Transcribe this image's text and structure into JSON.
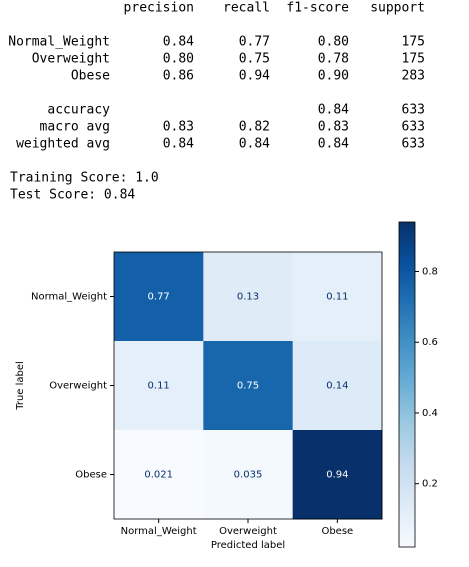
{
  "report": {
    "columns": [
      "precision",
      "recall",
      "f1-score",
      "support"
    ],
    "rows": [
      [
        "Normal_Weight",
        "0.84",
        "0.77",
        "0.80",
        "175"
      ],
      [
        "Overweight",
        "0.80",
        "0.75",
        "0.78",
        "175"
      ],
      [
        "Obese",
        "0.86",
        "0.94",
        "0.90",
        "283"
      ]
    ],
    "summary": [
      [
        "accuracy",
        null,
        null,
        "0.84",
        "633"
      ],
      [
        "macro avg",
        "0.83",
        "0.82",
        "0.83",
        "633"
      ],
      [
        "weighted avg",
        "0.84",
        "0.84",
        "0.84",
        "633"
      ]
    ]
  },
  "scores": [
    "Training Score: 1.0",
    "Test Score: 0.84"
  ],
  "chart_data": {
    "type": "heatmap",
    "xlabel": "Predicted label",
    "ylabel": "True label",
    "x_categories": [
      "Normal_Weight",
      "Overweight",
      "Obese"
    ],
    "y_categories": [
      "Normal_Weight",
      "Overweight",
      "Obese"
    ],
    "values": [
      [
        0.77,
        0.13,
        0.11
      ],
      [
        0.11,
        0.75,
        0.14
      ],
      [
        0.021,
        0.035,
        0.94
      ]
    ],
    "colormap": "Blues",
    "clim": [
      0.021,
      0.94
    ],
    "cticks": [
      0.2,
      0.4,
      0.6,
      0.8
    ]
  }
}
